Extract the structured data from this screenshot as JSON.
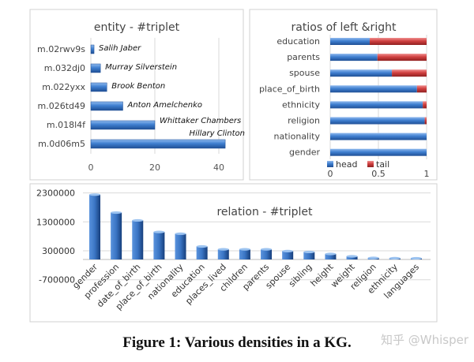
{
  "caption": "Figure 1: Various densities in a KG.",
  "watermark": "知乎 @Whisper",
  "colors": {
    "head": "#3f7fd0",
    "tail": "#d04040",
    "bar": "#3a75c4",
    "grid": "#d9d9d9",
    "frame": "#d0d0d0"
  },
  "chart_data": [
    {
      "type": "bar",
      "orientation": "horizontal",
      "title": "entity - #triplet",
      "categories": [
        "m.02rwv9s",
        "m.032dj0",
        "m.022yxx",
        "m.026td49",
        "m.018l4f",
        "m.0d06m5"
      ],
      "data_labels": [
        "Salih Jaber",
        "Murray Silverstein",
        "Brook Benton",
        "Anton Amelchenko",
        "Whittaker Chambers",
        "Hillary Clinton"
      ],
      "values": [
        1,
        3,
        5,
        10,
        20,
        42
      ],
      "xlim": [
        0,
        45
      ],
      "xticks": [
        "0",
        "20",
        "40"
      ],
      "grid": true
    },
    {
      "type": "bar",
      "orientation": "horizontal",
      "stacked": true,
      "title": "ratios of left &right",
      "categories": [
        "education",
        "parents",
        "spouse",
        "place_of_birth",
        "ethnicity",
        "religion",
        "nationality",
        "gender"
      ],
      "series": [
        {
          "name": "head",
          "values": [
            0.41,
            0.49,
            0.64,
            0.9,
            0.96,
            0.98,
            1.0,
            1.0
          ]
        },
        {
          "name": "tail",
          "values": [
            0.59,
            0.51,
            0.36,
            0.1,
            0.04,
            0.02,
            0.0,
            0.0
          ]
        }
      ],
      "xlim": [
        0,
        1
      ],
      "xticks": [
        "0",
        "0.5",
        "1"
      ],
      "legend": "bottom",
      "grid": true
    },
    {
      "type": "bar",
      "title": "relation - #triplet",
      "categories": [
        "gender",
        "profession",
        "date_of_birth",
        "place_of_birth",
        "nationality",
        "education",
        "places_lived",
        "children",
        "parents",
        "spouse",
        "sibling",
        "height",
        "weight",
        "religion",
        "ethnicity",
        "languages"
      ],
      "values": [
        2240000,
        1620000,
        1350000,
        950000,
        890000,
        450000,
        350000,
        350000,
        350000,
        290000,
        260000,
        190000,
        110000,
        55000,
        45000,
        10000
      ],
      "ylim": [
        -700000,
        2300000
      ],
      "yticks": [
        "2300000",
        "1300000",
        "300000",
        "-700000"
      ],
      "grid": true
    }
  ]
}
